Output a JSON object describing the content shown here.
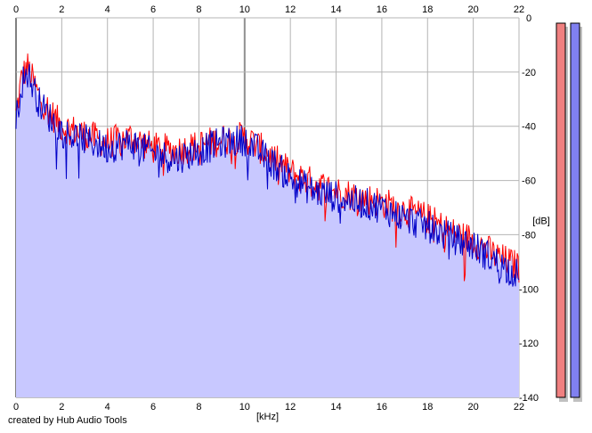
{
  "credit": "created by Hub Audio Tools",
  "colors": {
    "background": "#ffffff",
    "plot_fill": "#c8c8ff",
    "grid": "#b4b4b4",
    "left_channel": "#ff0000",
    "right_channel": "#0000c8",
    "meter_left": "#f08080",
    "meter_right": "#8080f0",
    "meter_shadow": "#c0c0c0"
  },
  "chart_data": {
    "type": "line",
    "xlabel": "[kHz]",
    "ylabel": "[dB]",
    "xlim": [
      0,
      22
    ],
    "ylim": [
      -140,
      0
    ],
    "x_ticks": [
      0,
      2,
      4,
      6,
      8,
      10,
      12,
      14,
      16,
      18,
      20,
      22
    ],
    "y_ticks": [
      0,
      -20,
      -40,
      -60,
      -80,
      -100,
      -120,
      -140
    ],
    "y_tick_labels": [
      "0",
      "-20",
      "-40",
      "-60",
      "-80",
      "-100",
      "-120",
      "-140"
    ],
    "grid": true,
    "x": [
      0,
      0.25,
      0.5,
      1,
      1.5,
      2,
      3,
      4,
      5,
      6,
      7,
      8,
      9,
      10,
      11,
      12,
      13,
      14,
      15,
      16,
      17,
      18,
      19,
      20,
      21,
      22
    ],
    "series": [
      {
        "values": [
          -36,
          -22,
          -18,
          -29,
          -35,
          -40,
          -43,
          -46,
          -44,
          -48,
          -49,
          -47,
          -45,
          -44,
          -50,
          -57,
          -61,
          -64,
          -66,
          -68,
          -71,
          -74,
          -79,
          -82,
          -88,
          -92
        ]
      },
      {
        "values": [
          -38,
          -24,
          -20,
          -31,
          -37,
          -42,
          -45,
          -48,
          -46,
          -50,
          -52,
          -49,
          -46,
          -45,
          -52,
          -59,
          -64,
          -66,
          -68,
          -70,
          -74,
          -77,
          -81,
          -84,
          -90,
          -95
        ]
      }
    ],
    "level_meters": [
      {
        "level": -140
      },
      {
        "level": -140
      }
    ]
  }
}
